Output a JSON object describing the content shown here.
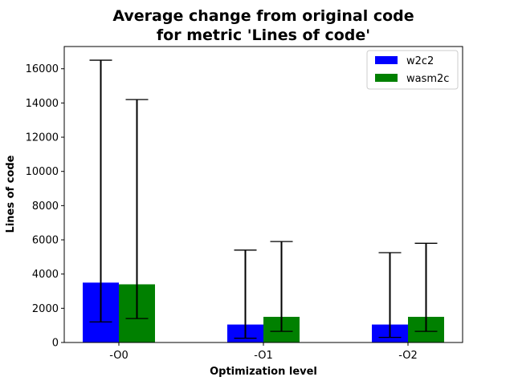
{
  "chart_data": {
    "type": "bar",
    "title_line1": "Average change from original code",
    "title_line2": "for metric 'Lines of code'",
    "xlabel": "Optimization level",
    "ylabel": "Lines of code",
    "categories": [
      "-O0",
      "-O1",
      "-O2"
    ],
    "ylim": [
      0,
      17300
    ],
    "yticks": [
      0,
      2000,
      4000,
      6000,
      8000,
      10000,
      12000,
      14000,
      16000
    ],
    "legend_position": "top-right",
    "grid": false,
    "series": [
      {
        "name": "w2c2",
        "color": "#0000ff",
        "values": [
          3500,
          1050,
          1050
        ],
        "error_low": [
          1200,
          250,
          300
        ],
        "error_high": [
          16500,
          5400,
          5250
        ]
      },
      {
        "name": "wasm2c",
        "color": "#008000",
        "values": [
          3400,
          1500,
          1500
        ],
        "error_low": [
          1400,
          650,
          650
        ],
        "error_high": [
          14200,
          5900,
          5800
        ]
      }
    ]
  }
}
